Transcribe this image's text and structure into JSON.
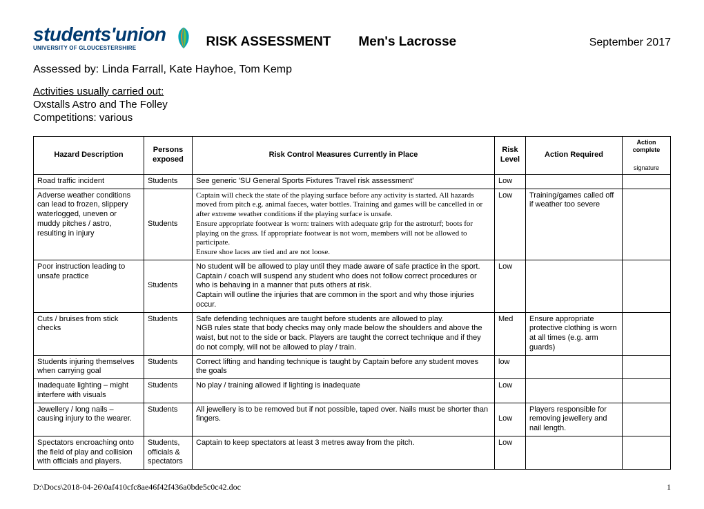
{
  "logo": {
    "main": "students'union",
    "sub": "UNIVERSITY OF GLOUCESTERSHIRE",
    "colors": {
      "brand": "#003a70",
      "accent1": "#00a3b4",
      "accent2": "#6fbf44",
      "accent3": "#f28c1b"
    }
  },
  "header": {
    "title": "RISK ASSESSMENT",
    "subject": "Men's Lacrosse",
    "date": "September 2017"
  },
  "assessed_by": "Assessed by: Linda Farrall, Kate Hayhoe, Tom Kemp",
  "activities": {
    "label": "Activities usually carried out:",
    "items": [
      "Oxstalls Astro and The Folley",
      "Competitions: various"
    ]
  },
  "table": {
    "columns": {
      "hazard": "Hazard Description",
      "persons": "Persons exposed",
      "control": "Risk Control Measures Currently in Place",
      "level": "Risk Level",
      "action": "Action Required",
      "sig_top": "Action complete",
      "sig_bot": "signature"
    },
    "rows": [
      {
        "hazard": "Road traffic incident",
        "persons": "Students",
        "control_html": "See generic 'SU General Sports Fixtures Travel risk assessment'",
        "level": "Low",
        "action": "",
        "serif_control": false,
        "persons_center": false
      },
      {
        "hazard": "Adverse weather conditions can lead to frozen, slippery waterlogged, uneven or muddy pitches / astro, resulting in injury",
        "persons": "Students",
        "control_html": "Captain will check the state of the playing surface before any activity is started. All hazards moved from pitch e.g. animal faeces, water bottles. Training and games will be cancelled in or after extreme weather conditions if the playing surface is unsafe.\nEnsure appropriate footwear is worn: trainers with adequate grip for the astroturf; boots for playing on the grass. If appropriate footwear is not worn, members will not be allowed to participate.\nEnsure shoe laces are tied and are not loose.",
        "level": "Low",
        "action": "Training/games called off if weather too severe",
        "serif_control": true,
        "persons_center": true
      },
      {
        "hazard": "Poor instruction leading to unsafe practice",
        "persons": "Students",
        "control_html": "No student will be allowed to play until they made aware of safe practice in the sport.\nCaptain / coach will suspend any student who does not follow correct procedures or who is behaving in a manner that puts others at risk.\nCaptain will outline the injuries that are common in the sport and why those injuries occur.",
        "level": "Low",
        "action": "",
        "serif_control": false,
        "persons_center": true,
        "level_top": true
      },
      {
        "hazard": "Cuts / bruises from stick checks",
        "persons": "Students",
        "control_html": "Safe defending techniques are taught before students are allowed to play.\nNGB rules state that body checks may only made below the shoulders and above the waist, but not to the side or back. Players are taught the correct technique and if they do not comply, will not be allowed to play / train.",
        "level": "Med",
        "action": "Ensure appropriate protective clothing is worn at all times (e.g. arm guards)",
        "serif_control": false,
        "persons_center": false
      },
      {
        "hazard": "Students injuring themselves when carrying goal",
        "persons": "Students",
        "control_html": "Correct lifting and handing technique is taught by Captain before any student moves the goals",
        "level": "low",
        "action": "",
        "serif_control": false,
        "persons_center": false
      },
      {
        "hazard": "Inadequate lighting – might interfere with visuals",
        "persons": "Students",
        "control_html": "No play / training allowed if lighting is inadequate",
        "level": "Low",
        "action": "",
        "serif_control": false,
        "persons_center": false
      },
      {
        "hazard": "Jewellery / long nails – causing injury to the wearer.",
        "persons": "Students",
        "control_html": "All jewellery is to be removed but if not possible, taped over. Nails must be shorter than fingers.",
        "level": "Low",
        "action": "Players responsible for removing jewellery and nail length.",
        "serif_control": false,
        "persons_center": false,
        "level_center": true
      },
      {
        "hazard": "Spectators encroaching onto the field of play and collision with officials and players.",
        "persons": "Students, officials & spectators",
        "control_html": "Captain to keep spectators at least 3 metres away from the pitch.",
        "level": "Low",
        "action": "",
        "serif_control": false,
        "persons_center": false
      }
    ]
  },
  "footer": {
    "path": "D:\\Docs\\2018-04-26\\0af410cfc8ae46f42f436a0bde5c0c42.doc",
    "page": "1"
  }
}
